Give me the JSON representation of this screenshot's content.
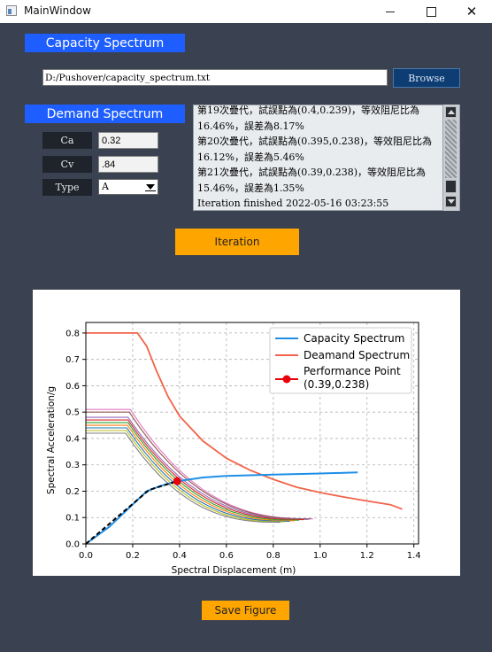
{
  "window": {
    "title": "MainWindow"
  },
  "capacity": {
    "label": "Capacity Spectrum",
    "path_value": "D:/Pushover/capacity_spectrum.txt",
    "browse_label": "Browse"
  },
  "demand": {
    "label": "Demand Spectrum",
    "ca_label": "Ca",
    "ca_value": "0.32",
    "cv_label": "Cv",
    "cv_value": ".84",
    "type_label": "Type",
    "type_value": "A"
  },
  "log": {
    "lines": [
      "第19次疊代，試誤點為(0.4,0.239)，等效阻尼比為",
      "16.46%，誤差為8.17%",
      "第20次疊代，試誤點為(0.395,0.238)，等效阻尼比為",
      "16.12%，誤差為5.46%",
      "第21次疊代，試誤點為(0.39,0.238)，等效阻尼比為",
      "15.46%，誤差為1.35%",
      "Iteration finished  2022-05-16 03:23:55"
    ]
  },
  "buttons": {
    "iteration_label": "Iteration",
    "save_label": "Save Figure"
  },
  "colors": {
    "accent_blue": "#1e5eff",
    "orange": "#ffa500",
    "capacity": "#1f8fe6",
    "demand": "#f2644a",
    "performance": "#e8000b",
    "background": "#3a4150"
  },
  "chart_data": {
    "type": "line",
    "xlabel": "Spectral Displacement (m)",
    "ylabel": "Spectral Acceleration/g",
    "xlim": [
      0,
      1.42
    ],
    "ylim": [
      0,
      0.84
    ],
    "xticks": [
      "0.0",
      "0.2",
      "0.4",
      "0.6",
      "0.8",
      "1.0",
      "1.2",
      "1.4"
    ],
    "yticks": [
      "0.0",
      "0.1",
      "0.2",
      "0.3",
      "0.4",
      "0.5",
      "0.6",
      "0.7",
      "0.8"
    ],
    "grid": true,
    "legend_position": "top-right",
    "legend": [
      "Capacity Spectrum",
      "Deamand Spectrum",
      "Performance Point\n(0.39,0.238)"
    ],
    "series": [
      {
        "name": "Capacity Spectrum",
        "points": [
          [
            0,
            0
          ],
          [
            0.1,
            0.065
          ],
          [
            0.2,
            0.15
          ],
          [
            0.26,
            0.2
          ],
          [
            0.32,
            0.22
          ],
          [
            0.39,
            0.238
          ],
          [
            0.5,
            0.252
          ],
          [
            0.6,
            0.258
          ],
          [
            0.8,
            0.263
          ],
          [
            1.0,
            0.267
          ],
          [
            1.16,
            0.271
          ]
        ]
      },
      {
        "name": "Deamand Spectrum",
        "points": [
          [
            0,
            0.8
          ],
          [
            0.22,
            0.8
          ],
          [
            0.26,
            0.75
          ],
          [
            0.3,
            0.66
          ],
          [
            0.35,
            0.56
          ],
          [
            0.4,
            0.485
          ],
          [
            0.5,
            0.39
          ],
          [
            0.6,
            0.325
          ],
          [
            0.7,
            0.28
          ],
          [
            0.8,
            0.245
          ],
          [
            0.9,
            0.215
          ],
          [
            1.0,
            0.195
          ],
          [
            1.1,
            0.178
          ],
          [
            1.2,
            0.163
          ],
          [
            1.3,
            0.149
          ],
          [
            1.35,
            0.132
          ]
        ]
      }
    ],
    "iteration_curves": [
      {
        "plateau": 0.51,
        "corner": 0.19,
        "end_x": 0.97,
        "end_y": 0.095
      },
      {
        "plateau": 0.5,
        "corner": 0.185,
        "end_x": 0.96,
        "end_y": 0.095
      },
      {
        "plateau": 0.48,
        "corner": 0.18,
        "end_x": 0.95,
        "end_y": 0.093
      },
      {
        "plateau": 0.47,
        "corner": 0.18,
        "end_x": 0.93,
        "end_y": 0.092
      },
      {
        "plateau": 0.46,
        "corner": 0.18,
        "end_x": 0.91,
        "end_y": 0.09
      },
      {
        "plateau": 0.45,
        "corner": 0.178,
        "end_x": 0.89,
        "end_y": 0.088
      },
      {
        "plateau": 0.44,
        "corner": 0.175,
        "end_x": 0.87,
        "end_y": 0.086
      },
      {
        "plateau": 0.43,
        "corner": 0.173,
        "end_x": 0.85,
        "end_y": 0.084
      },
      {
        "plateau": 0.42,
        "corner": 0.17,
        "end_x": 0.83,
        "end_y": 0.082
      }
    ],
    "bilinear": [
      [
        0,
        0
      ],
      [
        0.27,
        0.205
      ],
      [
        0.39,
        0.238
      ]
    ],
    "performance_point": {
      "x": 0.39,
      "y": 0.238
    }
  }
}
